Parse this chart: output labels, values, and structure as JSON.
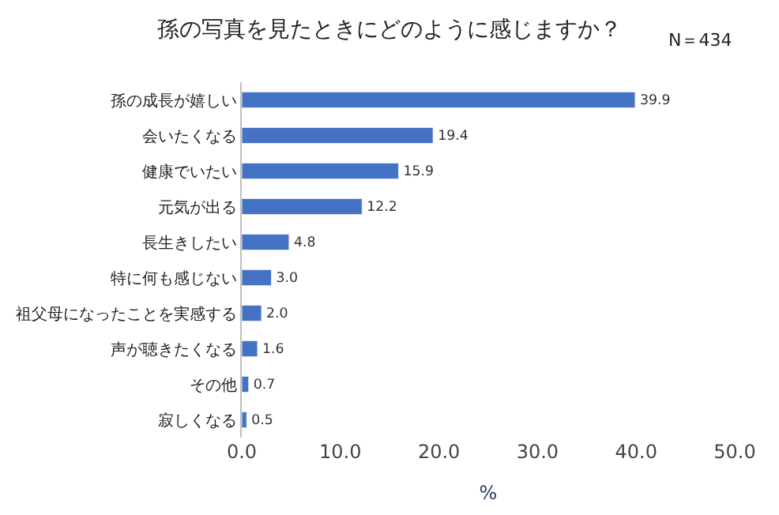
{
  "chart_data": {
    "type": "bar",
    "orientation": "horizontal",
    "title": "孫の写真を見たときにどのように感じますか？",
    "xlabel": "%",
    "categories": [
      "孫の成長が嬉しい",
      "会いたくなる",
      "健康でいたい",
      "元気が出る",
      "長生きしたい",
      "特に何も感じない",
      "祖父母になったことを実感する",
      "声が聴きたくなる",
      "その他",
      "寂しくなる"
    ],
    "values": [
      39.9,
      19.4,
      15.9,
      12.2,
      4.8,
      3.0,
      2.0,
      1.6,
      0.7,
      0.5
    ],
    "value_labels": [
      "39.9",
      "19.4",
      "15.9",
      "12.2",
      "4.8",
      "3.0",
      "2.0",
      "1.6",
      "0.7",
      "0.5"
    ],
    "color": "#4472c4",
    "xlim": [
      0,
      50
    ],
    "xticks": [
      {
        "value": 0,
        "label": "0.0"
      },
      {
        "value": 10,
        "label": "10.0"
      },
      {
        "value": 20,
        "label": "20.0"
      },
      {
        "value": 30,
        "label": "30.0"
      },
      {
        "value": 40,
        "label": "40.0"
      },
      {
        "value": 50,
        "label": "50.0"
      }
    ],
    "legend": false,
    "annotations": [
      "N＝434"
    ]
  }
}
